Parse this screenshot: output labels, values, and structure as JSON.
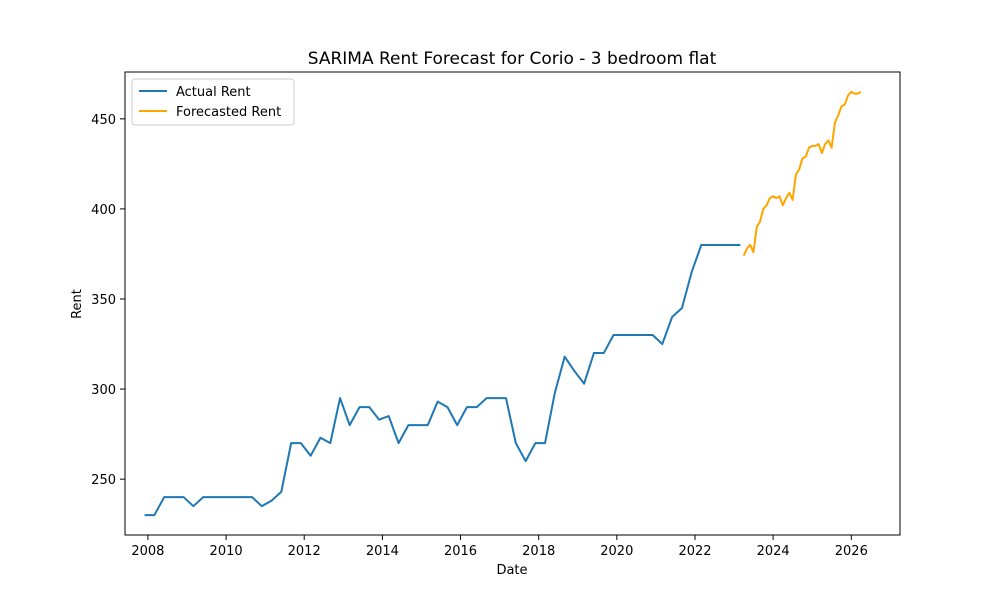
{
  "chart_data": {
    "type": "line",
    "title": "SARIMA Rent Forecast for Corio - 3 bedroom flat",
    "xlabel": "Date",
    "ylabel": "Rent",
    "xlim": [
      "2007-06-01",
      "2027-04-01"
    ],
    "ylim": [
      219,
      476
    ],
    "x_ticks": [
      "2008",
      "2010",
      "2012",
      "2014",
      "2016",
      "2018",
      "2020",
      "2022",
      "2024",
      "2026"
    ],
    "y_ticks": [
      250,
      300,
      350,
      400,
      450
    ],
    "grid": false,
    "legend_position": "top-left",
    "series": [
      {
        "name": "Actual Rent",
        "color": "#1f77b4",
        "x": [
          "2007-12-01",
          "2008-03-01",
          "2008-06-01",
          "2008-09-01",
          "2008-12-01",
          "2009-03-01",
          "2009-06-01",
          "2009-09-01",
          "2009-12-01",
          "2010-03-01",
          "2010-06-01",
          "2010-09-01",
          "2010-12-01",
          "2011-03-01",
          "2011-06-01",
          "2011-09-01",
          "2011-12-01",
          "2012-03-01",
          "2012-06-01",
          "2012-09-01",
          "2012-12-01",
          "2013-03-01",
          "2013-06-01",
          "2013-09-01",
          "2013-12-01",
          "2014-03-01",
          "2014-06-01",
          "2014-09-01",
          "2014-12-01",
          "2015-03-01",
          "2015-06-01",
          "2015-09-01",
          "2015-12-01",
          "2016-03-01",
          "2016-06-01",
          "2016-09-01",
          "2016-12-01",
          "2017-03-01",
          "2017-06-01",
          "2017-09-01",
          "2017-12-01",
          "2018-03-01",
          "2018-06-01",
          "2018-09-01",
          "2018-12-01",
          "2019-03-01",
          "2019-06-01",
          "2019-09-01",
          "2019-12-01",
          "2020-03-01",
          "2020-06-01",
          "2020-09-01",
          "2020-12-01",
          "2021-03-01",
          "2021-06-01",
          "2021-09-01",
          "2021-12-01",
          "2022-03-01",
          "2022-06-01",
          "2022-09-01",
          "2022-12-01",
          "2023-03-01"
        ],
        "y": [
          230,
          230,
          240,
          240,
          240,
          235,
          240,
          240,
          240,
          240,
          240,
          240,
          235,
          238,
          243,
          270,
          270,
          263,
          273,
          270,
          295,
          280,
          290,
          290,
          283,
          285,
          270,
          280,
          280,
          280,
          293,
          290,
          280,
          290,
          290,
          295,
          295,
          295,
          270,
          260,
          270,
          270,
          298,
          318,
          310,
          303,
          320,
          320,
          330,
          330,
          330,
          330,
          330,
          325,
          340,
          345,
          365,
          380,
          380,
          380,
          380,
          380
        ]
      },
      {
        "name": "Forecasted Rent",
        "color": "#ffa500",
        "x": [
          "2023-04-01",
          "2023-05-01",
          "2023-06-01",
          "2023-07-01",
          "2023-08-01",
          "2023-09-01",
          "2023-10-01",
          "2023-11-01",
          "2023-12-01",
          "2024-01-01",
          "2024-02-01",
          "2024-03-01",
          "2024-04-01",
          "2024-05-01",
          "2024-06-01",
          "2024-07-01",
          "2024-08-01",
          "2024-09-01",
          "2024-10-01",
          "2024-11-01",
          "2024-12-01",
          "2025-01-01",
          "2025-02-01",
          "2025-03-01",
          "2025-04-01",
          "2025-05-01",
          "2025-06-01",
          "2025-07-01",
          "2025-08-01",
          "2025-09-01",
          "2025-10-01",
          "2025-11-01",
          "2025-12-01",
          "2026-01-01",
          "2026-02-01",
          "2026-03-01",
          "2026-04-01"
        ],
        "y": [
          374,
          378,
          380,
          376,
          390,
          393,
          400,
          402,
          406,
          407,
          406,
          407,
          402,
          406,
          409,
          405,
          419,
          422,
          428,
          429,
          434,
          435,
          435,
          436,
          431,
          436,
          438,
          434,
          448,
          452,
          457,
          458,
          463,
          465,
          464,
          464,
          465
        ]
      }
    ]
  }
}
